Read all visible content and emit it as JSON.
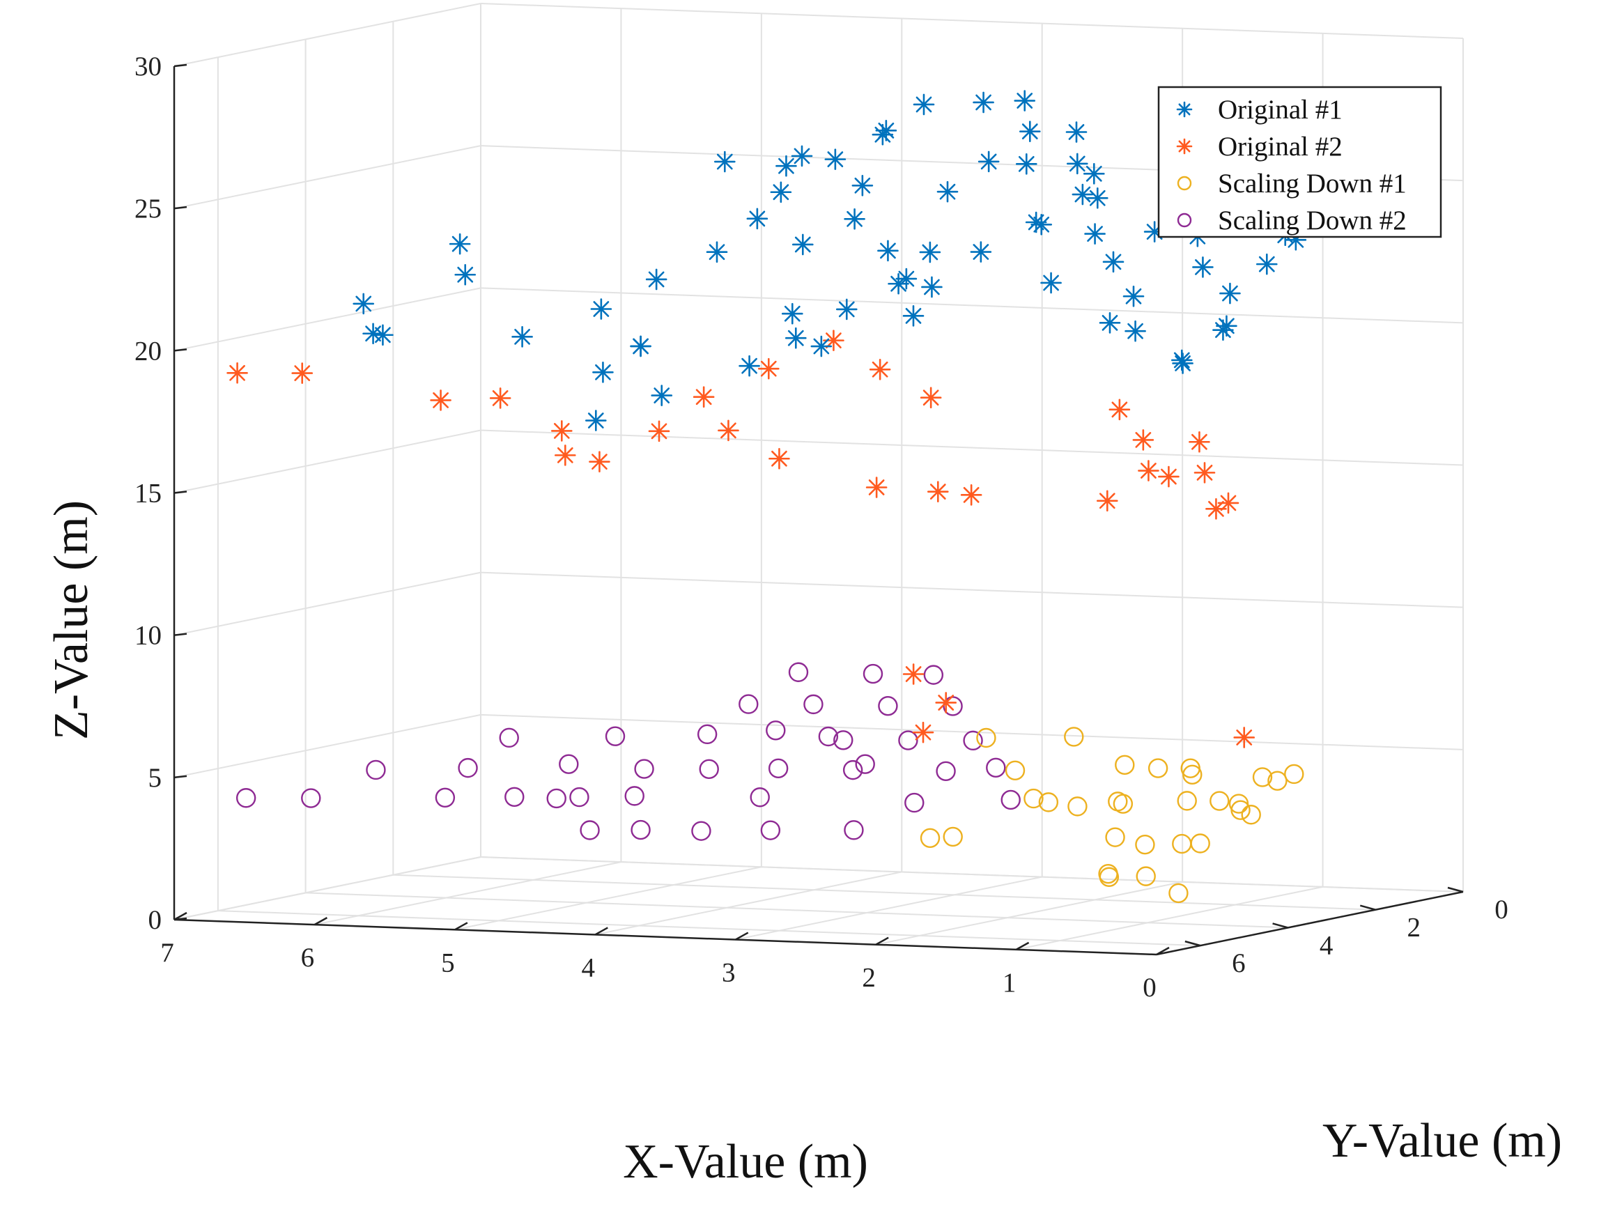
{
  "chart_data": {
    "type": "scatter",
    "projection": "3d",
    "xlabel": "X-Value (m)",
    "ylabel": "Y-Value (m)",
    "zlabel": "Z-Value (m)",
    "xlim": [
      0,
      7
    ],
    "ylim": [
      0,
      7
    ],
    "zlim": [
      0,
      30
    ],
    "x_ticks": [
      "0",
      "1",
      "2",
      "3",
      "4",
      "5",
      "6",
      "7"
    ],
    "y_ticks": [
      "0",
      "2",
      "4",
      "6"
    ],
    "z_ticks": [
      "0",
      "5",
      "10",
      "15",
      "20",
      "25",
      "30"
    ],
    "grid": true,
    "legend_position": "top-right",
    "series": [
      {
        "name": "Original #1",
        "marker": "asterisk",
        "color": "#0072BD",
        "points": [
          [
            5.3,
            4.5,
            20
          ],
          [
            4.8,
            4.3,
            21
          ],
          [
            4.6,
            4.9,
            19
          ],
          [
            4.3,
            5.0,
            20
          ],
          [
            4.3,
            5.0,
            20
          ],
          [
            4.5,
            4.0,
            22
          ],
          [
            4.1,
            3.9,
            23
          ],
          [
            4.0,
            3.3,
            24
          ],
          [
            3.8,
            3.4,
            25
          ],
          [
            3.7,
            3.6,
            26
          ],
          [
            3.6,
            2.8,
            26
          ],
          [
            3.2,
            3.0,
            27
          ],
          [
            3.3,
            2.6,
            27
          ],
          [
            3.0,
            2.7,
            28
          ],
          [
            2.7,
            2.3,
            28
          ],
          [
            2.5,
            2.0,
            28
          ],
          [
            2.4,
            2.2,
            27
          ],
          [
            2.1,
            2.1,
            27
          ],
          [
            2.0,
            2.4,
            26
          ],
          [
            1.9,
            2.6,
            25
          ],
          [
            4.9,
            4.1,
            17
          ],
          [
            4.4,
            4.2,
            18
          ],
          [
            3.9,
            3.8,
            19
          ],
          [
            3.6,
            3.7,
            20
          ],
          [
            3.3,
            3.5,
            21
          ],
          [
            3.0,
            3.1,
            22
          ],
          [
            2.8,
            3.2,
            23
          ],
          [
            2.5,
            3.0,
            23
          ],
          [
            2.2,
            2.7,
            24
          ],
          [
            2.0,
            3.0,
            22
          ],
          [
            3.9,
            2.6,
            26
          ],
          [
            3.5,
            2.5,
            25
          ],
          [
            3.4,
            3.0,
            24
          ],
          [
            3.1,
            3.2,
            23
          ],
          [
            2.8,
            2.8,
            25
          ],
          [
            2.6,
            2.5,
            26
          ],
          [
            2.3,
            2.6,
            26
          ],
          [
            2.1,
            2.9,
            24
          ],
          [
            4.2,
            3.4,
            26
          ],
          [
            3.8,
            2.9,
            23
          ],
          [
            1.5,
            3.6,
            24
          ],
          [
            1.4,
            3.5,
            23
          ],
          [
            1.2,
            3.2,
            24
          ],
          [
            1.1,
            3.0,
            25
          ],
          [
            1.0,
            2.9,
            26
          ],
          [
            0.9,
            3.1,
            25
          ],
          [
            0.8,
            3.5,
            24
          ],
          [
            0.7,
            3.7,
            23
          ],
          [
            0.6,
            3.4,
            22
          ],
          [
            0.5,
            3.8,
            21
          ],
          [
            0.4,
            3.2,
            23
          ],
          [
            0.3,
            3.1,
            24
          ],
          [
            0.2,
            3.0,
            25
          ],
          [
            0.1,
            3.5,
            24
          ],
          [
            0.4,
            4.2,
            21
          ],
          [
            0.6,
            4.5,
            20
          ],
          [
            0.9,
            4.6,
            21
          ],
          [
            1.1,
            4.0,
            22
          ],
          [
            1.3,
            3.9,
            21
          ],
          [
            0.5,
            4.8,
            20
          ],
          [
            2.9,
            3.6,
            22
          ],
          [
            2.6,
            3.8,
            22
          ],
          [
            3.5,
            4.1,
            21
          ],
          [
            3.2,
            4.4,
            20
          ],
          [
            2.7,
            3.9,
            21
          ],
          [
            1.7,
            2.9,
            25
          ],
          [
            1.6,
            3.3,
            26
          ],
          [
            0.8,
            2.8,
            27
          ],
          [
            0.6,
            2.6,
            27
          ],
          [
            0.2,
            2.7,
            26
          ],
          [
            6.3,
            4.7,
            20
          ],
          [
            6.2,
            4.8,
            20
          ],
          [
            6.4,
            4.6,
            21
          ],
          [
            5.8,
            4.2,
            22
          ],
          [
            5.9,
            4.0,
            23
          ]
        ]
      },
      {
        "name": "Original #2",
        "marker": "asterisk",
        "color": "#FF5A1F",
        "points": [
          [
            6.8,
            6.2,
            19
          ],
          [
            6.4,
            6.0,
            19
          ],
          [
            5.6,
            5.4,
            18
          ],
          [
            5.3,
            5.0,
            18
          ],
          [
            4.8,
            5.2,
            17
          ],
          [
            4.5,
            5.3,
            16
          ],
          [
            4.2,
            4.9,
            17
          ],
          [
            3.8,
            4.6,
            17
          ],
          [
            3.5,
            4.4,
            16
          ],
          [
            2.9,
            4.1,
            15
          ],
          [
            2.4,
            4.3,
            15
          ],
          [
            2.1,
            4.5,
            15
          ],
          [
            4.9,
            4.8,
            16
          ],
          [
            4.1,
            4.2,
            18
          ],
          [
            3.7,
            4.0,
            19
          ],
          [
            3.3,
            3.8,
            20
          ],
          [
            3.0,
            3.7,
            19
          ],
          [
            2.7,
            3.5,
            18
          ],
          [
            1.2,
            4.0,
            18
          ],
          [
            1.0,
            4.1,
            17
          ],
          [
            0.9,
            4.3,
            16
          ],
          [
            0.6,
            4.1,
            17
          ],
          [
            0.5,
            4.3,
            16
          ],
          [
            0.3,
            4.4,
            15
          ],
          [
            0.6,
            4.8,
            16
          ],
          [
            1.1,
            4.6,
            15
          ],
          [
            0.2,
            5.0,
            15
          ],
          [
            0.0,
            5.0,
            7
          ],
          [
            2.0,
            5.4,
            8
          ],
          [
            2.2,
            5.5,
            9
          ],
          [
            2.1,
            5.6,
            7
          ]
        ]
      },
      {
        "name": "Scaling Down #1",
        "marker": "circle",
        "color": "#EDB120",
        "points": [
          [
            1.6,
            2.6,
            5
          ],
          [
            1.3,
            2.8,
            5
          ],
          [
            1.0,
            3.1,
            4
          ],
          [
            0.9,
            3.3,
            5
          ],
          [
            0.8,
            3.0,
            4
          ],
          [
            0.6,
            3.2,
            4
          ],
          [
            0.4,
            3.3,
            5
          ],
          [
            0.2,
            3.6,
            5
          ],
          [
            0.2,
            4.2,
            4
          ],
          [
            0.5,
            4.4,
            3
          ],
          [
            1.0,
            4.9,
            2
          ],
          [
            0.9,
            5.2,
            2
          ],
          [
            0.7,
            5.0,
            2
          ],
          [
            1.2,
            4.1,
            3
          ],
          [
            1.5,
            4.0,
            4
          ],
          [
            2.1,
            3.5,
            5
          ],
          [
            2.4,
            3.2,
            6
          ],
          [
            2.2,
            4.6,
            3
          ],
          [
            2.3,
            4.8,
            3
          ],
          [
            0.0,
            6.5,
            2
          ],
          [
            1.8,
            3.7,
            4
          ],
          [
            1.4,
            3.4,
            4
          ],
          [
            1.1,
            2.7,
            5
          ],
          [
            0.3,
            2.9,
            5
          ],
          [
            0.8,
            4.7,
            3
          ],
          [
            0.6,
            4.5,
            3
          ],
          [
            1.9,
            2.8,
            6
          ],
          [
            2.0,
            3.4,
            4
          ],
          [
            1.3,
            3.6,
            4
          ],
          [
            0.4,
            3.8,
            4
          ]
        ]
      },
      {
        "name": "Scaling Down #2",
        "marker": "circle",
        "color": "#8E2A93",
        "points": [
          [
            6.8,
            6.0,
            4
          ],
          [
            6.4,
            5.8,
            4
          ],
          [
            6.0,
            5.6,
            5
          ],
          [
            5.6,
            5.3,
            4
          ],
          [
            5.2,
            5.0,
            4
          ],
          [
            4.8,
            4.8,
            4
          ],
          [
            4.4,
            4.6,
            5
          ],
          [
            4.0,
            4.4,
            5
          ],
          [
            3.6,
            4.1,
            5
          ],
          [
            3.2,
            3.9,
            6
          ],
          [
            2.8,
            3.7,
            6
          ],
          [
            2.4,
            3.5,
            6
          ],
          [
            5.3,
            4.8,
            6
          ],
          [
            4.7,
            4.3,
            6
          ],
          [
            4.0,
            3.5,
            7
          ],
          [
            3.6,
            3.3,
            7
          ],
          [
            3.1,
            3.2,
            7
          ],
          [
            2.7,
            3.0,
            7
          ],
          [
            4.3,
            5.0,
            3
          ],
          [
            3.9,
            4.9,
            3
          ],
          [
            3.5,
            4.6,
            3
          ],
          [
            3.0,
            4.3,
            3
          ],
          [
            2.6,
            4.2,
            4
          ],
          [
            4.6,
            5.2,
            3
          ],
          [
            3.8,
            3.0,
            8
          ],
          [
            3.3,
            2.9,
            8
          ],
          [
            2.9,
            2.8,
            8
          ],
          [
            5.0,
            4.4,
            5
          ],
          [
            4.2,
            3.8,
            6
          ],
          [
            3.4,
            3.6,
            6
          ],
          [
            2.3,
            3.3,
            5
          ],
          [
            2.1,
            3.6,
            4
          ],
          [
            5.5,
            5.1,
            5
          ],
          [
            4.9,
            5.0,
            4
          ],
          [
            4.5,
            4.5,
            4
          ],
          [
            3.7,
            4.2,
            4
          ],
          [
            3.1,
            4.0,
            5
          ],
          [
            2.5,
            3.8,
            5
          ],
          [
            3.9,
            3.2,
            6
          ],
          [
            3.2,
            3.4,
            5
          ]
        ]
      }
    ]
  }
}
